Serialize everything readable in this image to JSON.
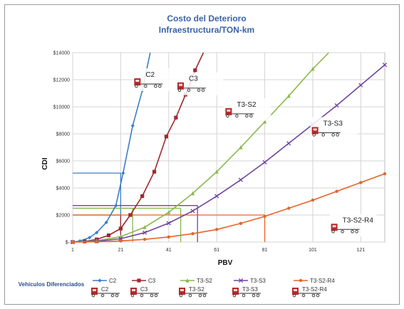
{
  "chart_data": {
    "type": "line",
    "title": "Costo del Deterioro",
    "subtitle": "Infraestructura/TON-km",
    "xlabel": "PBV",
    "ylabel": "CDI",
    "xlim": [
      1,
      131
    ],
    "ylim": [
      0,
      14000
    ],
    "x_ticks": [
      "1",
      "21",
      "41",
      "61",
      "81",
      "101",
      "121"
    ],
    "y_ticks": [
      {
        "value": 0,
        "label": "$-"
      },
      {
        "value": 2000,
        "label": "$2000"
      },
      {
        "value": 4000,
        "label": "$4000"
      },
      {
        "value": 6000,
        "label": "$6000"
      },
      {
        "value": 8000,
        "label": "$8000"
      },
      {
        "value": 10000,
        "label": "$10000"
      },
      {
        "value": 12000,
        "label": "$12000"
      },
      {
        "value": 14000,
        "label": "$14000"
      }
    ],
    "grid": true,
    "legend_title": "Vehículos Diferenciados",
    "legend_position": "bottom",
    "series": [
      {
        "name": "C2",
        "color": "#3d7ec8",
        "marker": "diamond",
        "x": [
          1,
          4,
          8,
          11,
          15,
          19,
          22,
          26,
          30,
          34
        ],
        "y": [
          0,
          80,
          330,
          700,
          1450,
          2700,
          5100,
          8600,
          11200,
          14600
        ]
      },
      {
        "name": "C3",
        "color": "#a02830",
        "marker": "square",
        "x": [
          1,
          6,
          11,
          16,
          21,
          25,
          30,
          35,
          40,
          44,
          48,
          52,
          56
        ],
        "y": [
          0,
          50,
          200,
          500,
          1000,
          2000,
          3400,
          5200,
          7800,
          9200,
          10900,
          12700,
          14200
        ]
      },
      {
        "name": "T3-S2",
        "color": "#8ab84a",
        "marker": "triangle",
        "x": [
          1,
          11,
          21,
          31,
          41,
          51,
          61,
          71,
          81,
          91,
          101,
          111
        ],
        "y": [
          0,
          100,
          400,
          1100,
          2200,
          3600,
          5200,
          7000,
          8900,
          10800,
          12800,
          14600
        ]
      },
      {
        "name": "T3-S3",
        "color": "#7044a0",
        "marker": "x",
        "x": [
          1,
          11,
          21,
          31,
          41,
          51,
          61,
          71,
          81,
          91,
          101,
          111,
          121,
          131
        ],
        "y": [
          0,
          60,
          250,
          700,
          1400,
          2300,
          3400,
          4600,
          5900,
          7300,
          8700,
          10100,
          11600,
          13100
        ]
      },
      {
        "name": "T3-S2-R4",
        "color": "#e8632a",
        "marker": "circle",
        "x": [
          1,
          11,
          21,
          31,
          41,
          51,
          61,
          71,
          81,
          91,
          101,
          111,
          121,
          131
        ],
        "y": [
          0,
          20,
          80,
          200,
          380,
          620,
          930,
          1380,
          1900,
          2500,
          3100,
          3750,
          4400,
          5050
        ]
      }
    ],
    "reference_lines": [
      {
        "series": "C2",
        "x": 21,
        "y": 5100
      },
      {
        "series": "C3",
        "x": 21,
        "y": 2000
      },
      {
        "series": "T3-S2",
        "x": 26,
        "y": 2500
      },
      {
        "series": "T3-S2",
        "x": 46,
        "y": 2500
      },
      {
        "series": "T3-S3",
        "x": 53,
        "y": 2700
      },
      {
        "series": "T3-S2-R4",
        "x": 81,
        "y": 2000
      }
    ],
    "annotations": [
      {
        "text": "C2",
        "x": 29,
        "y": 12000
      },
      {
        "text": "C3",
        "x": 47,
        "y": 11700
      },
      {
        "text": "T3-S2",
        "x": 67,
        "y": 9800
      },
      {
        "text": "T3-S3",
        "x": 103,
        "y": 8400
      },
      {
        "text": "T3-S2-R4",
        "x": 111,
        "y": 1250
      }
    ]
  }
}
